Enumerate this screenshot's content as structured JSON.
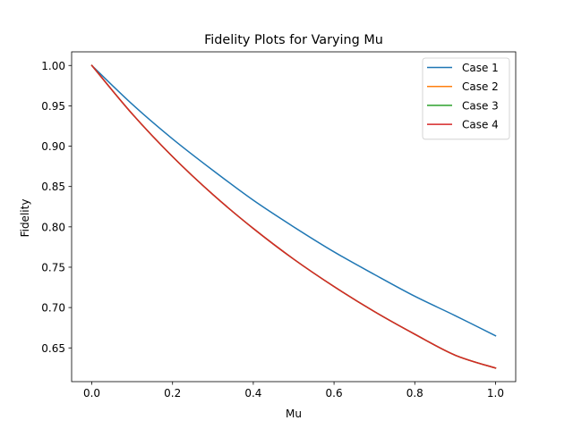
{
  "chart_data": {
    "type": "line",
    "title": "Fidelity Plots for Varying Mu",
    "xlabel": "Mu",
    "ylabel": "Fidelity",
    "xlim": [
      -0.05,
      1.05
    ],
    "ylim": [
      0.6082,
      1.0169
    ],
    "xticks": [
      0.0,
      0.2,
      0.4,
      0.6,
      0.8,
      1.0
    ],
    "xtick_labels": [
      "0.0",
      "0.2",
      "0.4",
      "0.6",
      "0.8",
      "1.0"
    ],
    "yticks": [
      0.65,
      0.7,
      0.75,
      0.8,
      0.85,
      0.9,
      0.95,
      1.0
    ],
    "ytick_labels": [
      "0.65",
      "0.70",
      "0.75",
      "0.80",
      "0.85",
      "0.90",
      "0.95",
      "1.00"
    ],
    "grid": false,
    "legend_position": "top-right",
    "x": [
      0.0,
      0.1,
      0.2,
      0.3,
      0.4,
      0.5,
      0.6,
      0.7,
      0.8,
      0.9,
      1.0
    ],
    "series": [
      {
        "name": "Case 1",
        "color": "#1f77b4",
        "values": [
          1.0,
          0.952,
          0.909,
          0.87,
          0.833,
          0.8,
          0.769,
          0.741,
          0.714,
          0.69,
          0.665
        ]
      },
      {
        "name": "Case 2",
        "color": "#ff7f0e",
        "values": [
          1.0,
          0.94,
          0.887,
          0.84,
          0.798,
          0.76,
          0.726,
          0.695,
          0.667,
          0.641,
          0.625
        ]
      },
      {
        "name": "Case 3",
        "color": "#2ca02c",
        "values": [
          1.0,
          0.94,
          0.887,
          0.84,
          0.798,
          0.76,
          0.726,
          0.695,
          0.667,
          0.641,
          0.625
        ]
      },
      {
        "name": "Case 4",
        "color": "#d62728",
        "values": [
          1.0,
          0.94,
          0.887,
          0.84,
          0.798,
          0.76,
          0.726,
          0.695,
          0.667,
          0.641,
          0.625
        ]
      }
    ]
  }
}
